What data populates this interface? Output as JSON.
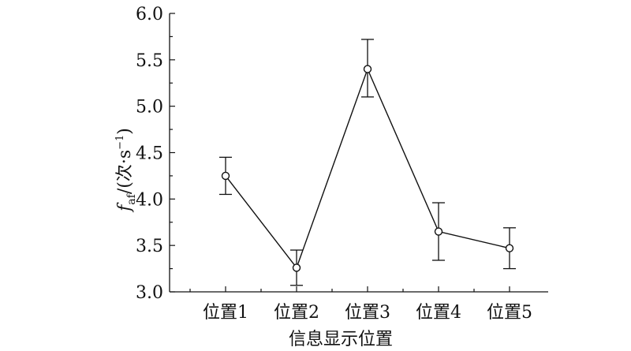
{
  "chart_data": {
    "type": "line",
    "xlabel": "信息显示位置",
    "ylabel": {
      "symbol": "f",
      "subscript": "af",
      "unit_prefix": "/(次·s",
      "unit_exp": "−1",
      "unit_suffix": ")"
    },
    "categories": [
      "位置1",
      "位置2",
      "位置3",
      "位置4",
      "位置5"
    ],
    "series": [
      {
        "values": [
          4.25,
          3.26,
          5.4,
          3.65,
          3.47
        ],
        "err_low": [
          4.05,
          3.07,
          5.1,
          3.34,
          3.25
        ],
        "err_high": [
          4.45,
          3.45,
          5.72,
          3.96,
          3.69
        ]
      }
    ],
    "ylim": [
      3.0,
      6.0
    ],
    "yticks": [
      "3.0",
      "3.5",
      "4.0",
      "4.5",
      "5.0",
      "5.5",
      "6.0"
    ],
    "grid": false,
    "marker": "open-circle",
    "colors": {
      "line": "#111111",
      "background": "#ffffff"
    }
  }
}
